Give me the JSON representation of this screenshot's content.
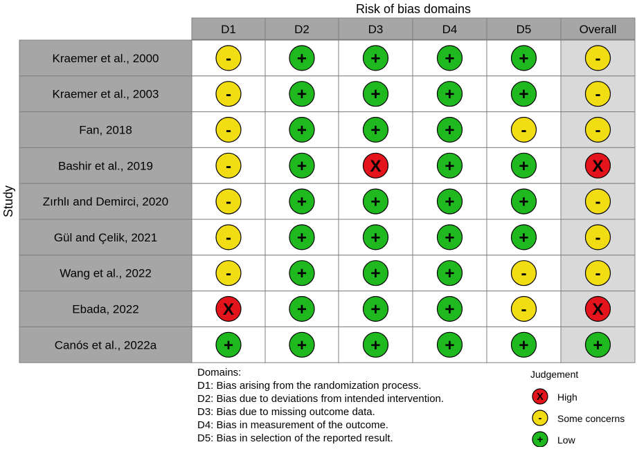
{
  "chart_data": {
    "type": "table",
    "title": "Risk of bias domains",
    "ylabel": "Study",
    "columns": [
      "D1",
      "D2",
      "D3",
      "D4",
      "D5",
      "Overall"
    ],
    "studies": [
      "Kraemer et al., 2000",
      "Kraemer et al., 2003",
      "Fan, 2018",
      "Bashir et al., 2019",
      "Zırhlı and Demirci, 2020",
      "Gül and Çelik, 2021",
      "Wang et al., 2022",
      "Ebada, 2022",
      "Canós et al., 2022a"
    ],
    "judgements": [
      [
        "some",
        "low",
        "low",
        "low",
        "low",
        "some"
      ],
      [
        "some",
        "low",
        "low",
        "low",
        "low",
        "some"
      ],
      [
        "some",
        "low",
        "low",
        "low",
        "some",
        "some"
      ],
      [
        "some",
        "low",
        "high",
        "low",
        "low",
        "high"
      ],
      [
        "some",
        "low",
        "low",
        "low",
        "low",
        "some"
      ],
      [
        "some",
        "low",
        "low",
        "low",
        "low",
        "some"
      ],
      [
        "some",
        "low",
        "low",
        "low",
        "some",
        "some"
      ],
      [
        "high",
        "low",
        "low",
        "low",
        "some",
        "high"
      ],
      [
        "low",
        "low",
        "low",
        "low",
        "low",
        "low"
      ]
    ],
    "judgement_levels": {
      "high": {
        "label": "High",
        "symbol": "X",
        "color": "#e3141b"
      },
      "some": {
        "label": "Some concerns",
        "symbol": "-",
        "color": "#f2dc14"
      },
      "low": {
        "label": "Low",
        "symbol": "+",
        "color": "#1fb81f"
      }
    }
  },
  "legend": {
    "domains_heading": "Domains:",
    "domains": [
      "D1: Bias arising from the randomization process.",
      "D2: Bias due to deviations from intended intervention.",
      "D3: Bias due to missing outcome data.",
      "D4: Bias in measurement of the outcome.",
      "D5: Bias in selection of the reported result."
    ],
    "judgement_heading": "Judgement",
    "judgement_order": [
      "high",
      "some",
      "low"
    ]
  },
  "colors": {
    "header_fill": "#a6a6a6",
    "study_fill": "#a6a6a6",
    "cell_fill": "#ffffff",
    "overall_fill": "#d9d9d9",
    "border": "#7f7f7f"
  }
}
